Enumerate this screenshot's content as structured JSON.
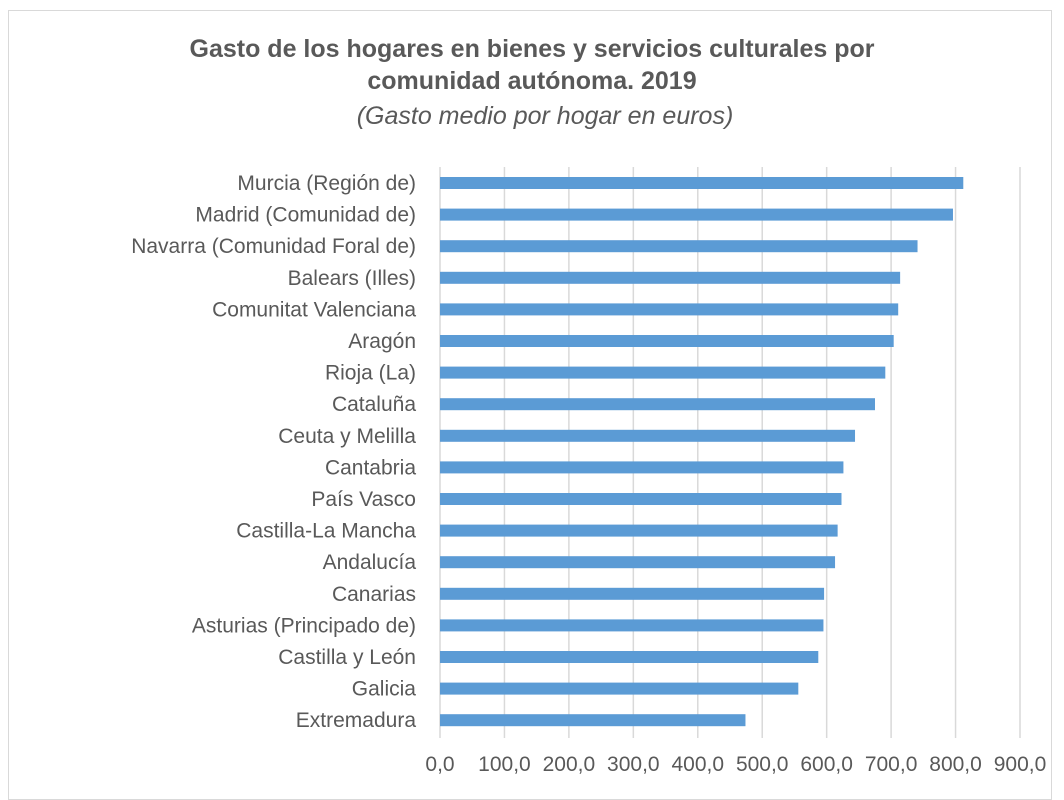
{
  "chart_data": {
    "type": "bar",
    "orientation": "horizontal",
    "title_lines": [
      "Gasto de los hogares en bienes y servicios culturales por",
      "comunidad autónoma. 2019"
    ],
    "subtitle": "(Gasto medio por hogar en euros)",
    "categories": [
      "Murcia (Región de)",
      "Madrid (Comunidad de)",
      "Navarra (Comunidad Foral de)",
      "Balears (Illes)",
      "Comunitat Valenciana",
      "Aragón",
      "Rioja (La)",
      "Cataluña",
      "Ceuta y Melilla",
      "Cantabria",
      "País Vasco",
      "Castilla-La Mancha",
      "Andalucía",
      "Canarias",
      "Asturias (Principado de)",
      "Castilla y León",
      "Galicia",
      "Extremadura"
    ],
    "values": [
      812,
      796,
      741,
      714,
      711,
      704,
      691,
      675,
      644,
      626,
      623,
      617,
      613,
      596,
      595,
      587,
      556,
      474
    ],
    "xlim": [
      0,
      900
    ],
    "xticks": [
      "0,0",
      "100,0",
      "200,0",
      "300,0",
      "400,0",
      "500,0",
      "600,0",
      "700,0",
      "800,0",
      "900,0"
    ],
    "xtick_values": [
      0,
      100,
      200,
      300,
      400,
      500,
      600,
      700,
      800,
      900
    ],
    "grid": true,
    "legend": "none",
    "bar_color": "#5b9bd5",
    "grid_color": "#d9d9d9"
  }
}
